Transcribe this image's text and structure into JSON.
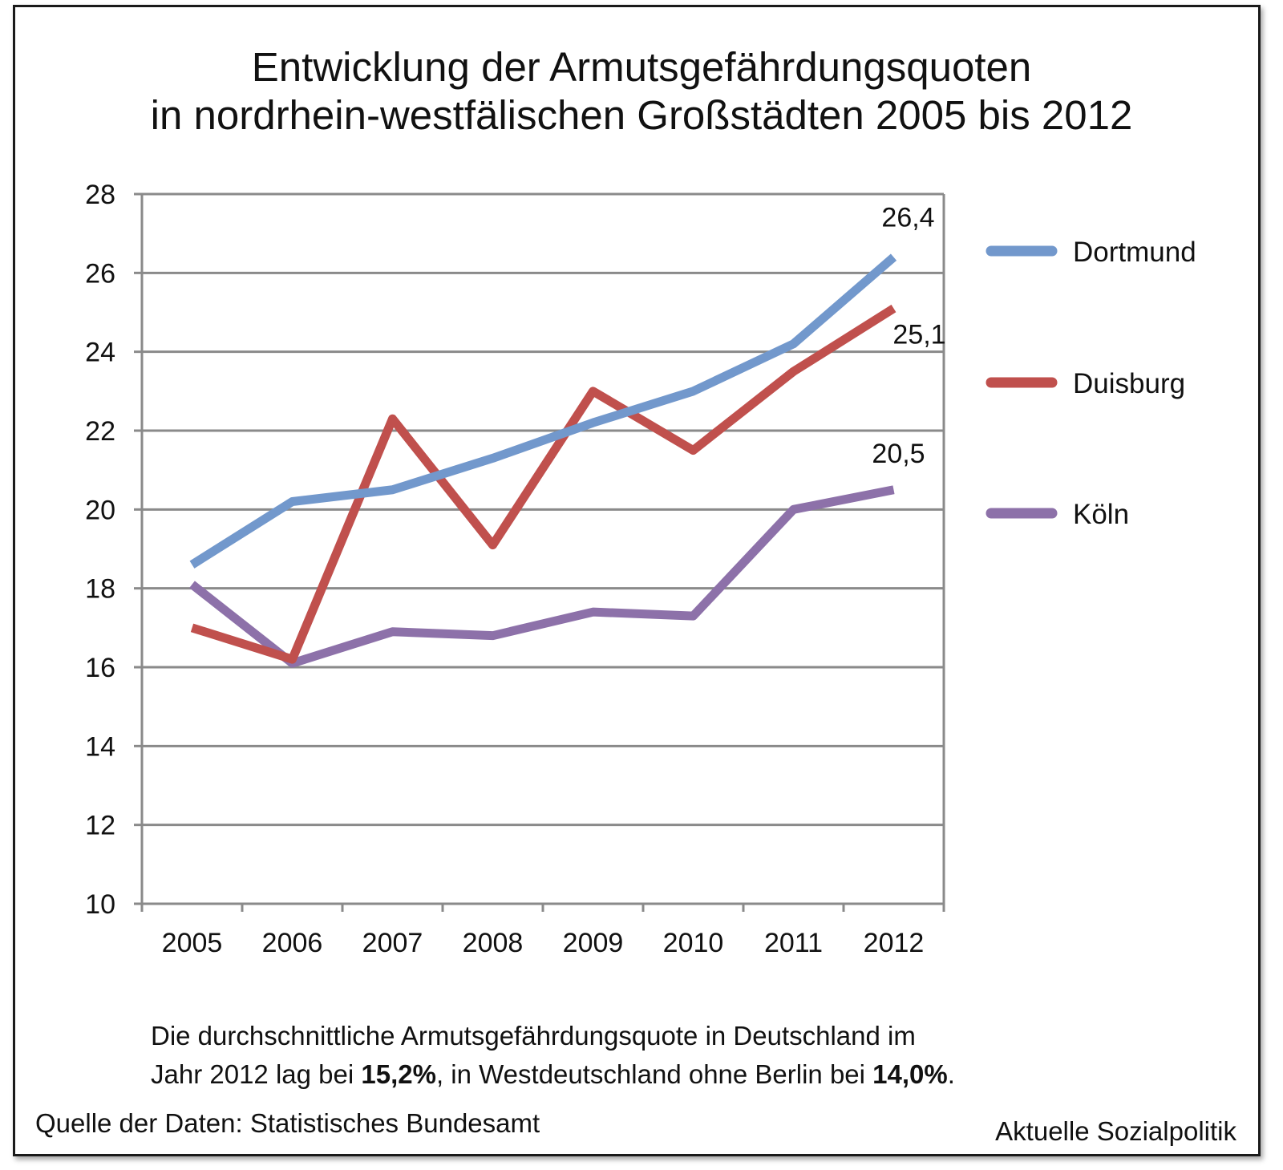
{
  "chart_data": {
    "type": "line",
    "title": "Entwicklung der Armutsgefährdungsquoten in nordrhein-westfälischen Großstädten 2005 bis 2012",
    "title_lines": [
      "Entwicklung der Armutsgefährdungsquoten",
      "in nordrhein-westfälischen Großstädten 2005 bis 2012"
    ],
    "categories": [
      "2005",
      "2006",
      "2007",
      "2008",
      "2009",
      "2010",
      "2011",
      "2012"
    ],
    "ylim": [
      10,
      28
    ],
    "yticks": [
      "10",
      "12",
      "14",
      "16",
      "18",
      "20",
      "22",
      "24",
      "26",
      "28"
    ],
    "grid": true,
    "legend_position": "right",
    "series": [
      {
        "name": "Dortmund",
        "color": "#7298cc",
        "values": [
          18.6,
          20.2,
          20.5,
          21.3,
          22.2,
          23.0,
          24.2,
          26.4
        ],
        "end_label": "26,4"
      },
      {
        "name": "Duisburg",
        "color": "#c0504d",
        "values": [
          17.0,
          16.2,
          22.3,
          19.1,
          23.0,
          21.5,
          23.5,
          25.1
        ],
        "end_label": "25,1"
      },
      {
        "name": "Köln",
        "color": "#8d71a9",
        "values": [
          18.1,
          16.1,
          16.9,
          16.8,
          17.4,
          17.3,
          20.0,
          20.5
        ],
        "end_label": "20,5"
      }
    ]
  },
  "footnote": {
    "line1": "Die durchschnittliche Armutsgefährdungsquote in Deutschland im",
    "line2_pre": "Jahr 2012 lag bei ",
    "line2_value1": "15,2%",
    "line2_mid": ", in Westdeutschland ohne Berlin bei ",
    "line2_value2": "14,0%",
    "line2_post": "."
  },
  "source": "Quelle der Daten: Statistisches Bundesamt",
  "publisher": "Aktuelle Sozialpolitik"
}
